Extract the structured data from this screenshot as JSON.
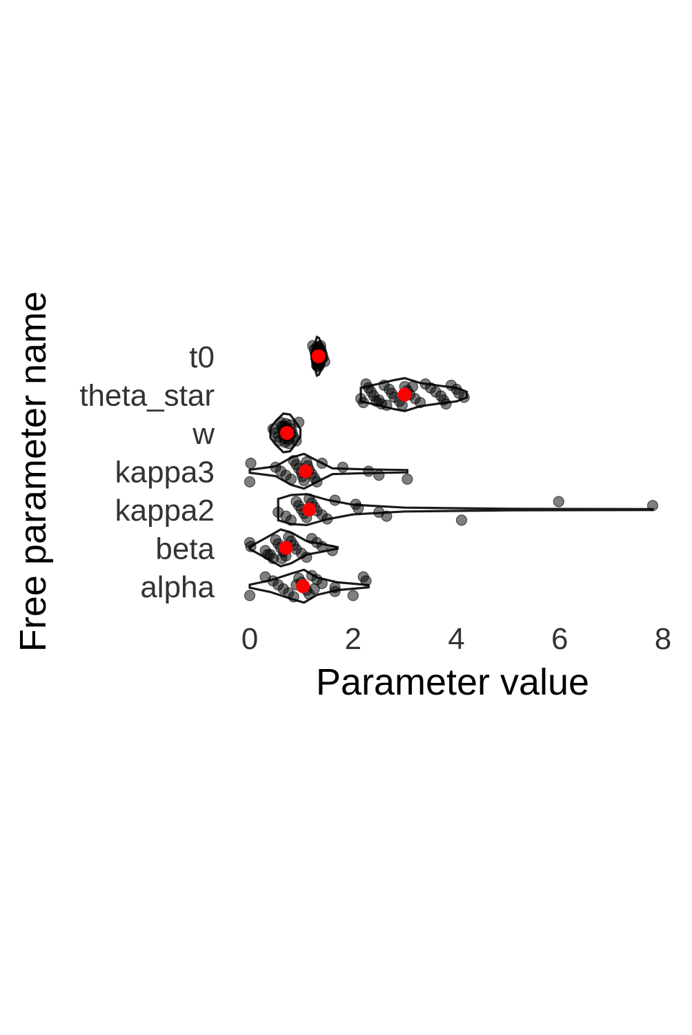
{
  "chart_data": {
    "type": "violin",
    "xlabel": "Parameter value",
    "ylabel": "Free parameter name",
    "xlim": [
      0,
      8
    ],
    "x_ticks": [
      0,
      2,
      4,
      6,
      8
    ],
    "grid": false,
    "orientation": "horizontal",
    "point_color": "#000000",
    "mean_color": "#ff0000",
    "categories": [
      "t0",
      "theta_star",
      "w",
      "kappa3",
      "kappa2",
      "beta",
      "alpha"
    ],
    "series": [
      {
        "category": "t0",
        "mean": 1.33,
        "points": [
          1.22,
          1.25,
          1.27,
          1.28,
          1.29,
          1.3,
          1.3,
          1.31,
          1.32,
          1.32,
          1.33,
          1.33,
          1.34,
          1.34,
          1.35,
          1.35,
          1.36,
          1.37,
          1.38,
          1.4,
          1.42,
          1.45,
          1.3,
          1.34,
          1.36
        ],
        "density": [
          [
            1.2,
            0.15
          ],
          [
            1.26,
            0.6
          ],
          [
            1.3,
            1.0
          ],
          [
            1.34,
            0.95
          ],
          [
            1.38,
            0.7
          ],
          [
            1.43,
            0.4
          ],
          [
            1.48,
            0.12
          ]
        ]
      },
      {
        "category": "theta_star",
        "mean": 3.0,
        "points": [
          2.15,
          2.2,
          2.25,
          2.3,
          2.35,
          2.4,
          2.5,
          2.55,
          2.6,
          2.7,
          2.75,
          2.8,
          2.9,
          2.95,
          3.0,
          3.05,
          3.1,
          3.2,
          3.3,
          3.4,
          3.5,
          3.6,
          3.7,
          3.75,
          3.8,
          3.9,
          4.0,
          4.05,
          4.15,
          2.45,
          2.65,
          3.15
        ],
        "density": [
          [
            2.15,
            0.35
          ],
          [
            2.4,
            0.5
          ],
          [
            2.8,
            0.75
          ],
          [
            3.0,
            0.85
          ],
          [
            3.3,
            0.6
          ],
          [
            3.7,
            0.45
          ],
          [
            4.0,
            0.35
          ],
          [
            4.2,
            0.15
          ]
        ]
      },
      {
        "category": "w",
        "mean": 0.72,
        "points": [
          0.45,
          0.5,
          0.55,
          0.58,
          0.6,
          0.62,
          0.64,
          0.65,
          0.67,
          0.68,
          0.7,
          0.71,
          0.72,
          0.73,
          0.75,
          0.76,
          0.78,
          0.8,
          0.82,
          0.85,
          0.9,
          0.95,
          0.66,
          0.74,
          0.79
        ],
        "density": [
          [
            0.4,
            0.25
          ],
          [
            0.5,
            0.6
          ],
          [
            0.65,
            1.0
          ],
          [
            0.78,
            0.95
          ],
          [
            0.88,
            0.6
          ],
          [
            0.98,
            0.2
          ]
        ]
      },
      {
        "category": "kappa3",
        "mean": 1.08,
        "points": [
          0.0,
          0.02,
          0.5,
          0.6,
          0.7,
          0.8,
          0.85,
          0.9,
          0.95,
          1.0,
          1.02,
          1.05,
          1.1,
          1.12,
          1.15,
          1.2,
          1.25,
          1.3,
          1.4,
          1.8,
          2.3,
          2.5,
          3.05
        ],
        "density": [
          [
            0.0,
            0.08
          ],
          [
            0.5,
            0.25
          ],
          [
            0.8,
            0.7
          ],
          [
            1.05,
            0.9
          ],
          [
            1.3,
            0.55
          ],
          [
            1.6,
            0.15
          ],
          [
            2.2,
            0.1
          ],
          [
            3.05,
            0.06
          ]
        ]
      },
      {
        "category": "kappa2",
        "mean": 1.15,
        "points": [
          0.55,
          0.7,
          0.8,
          0.9,
          0.95,
          1.0,
          1.05,
          1.1,
          1.15,
          1.2,
          1.25,
          1.3,
          1.4,
          1.5,
          1.65,
          2.05,
          2.1,
          2.5,
          2.65,
          4.1,
          5.98,
          7.8
        ],
        "density": [
          [
            0.55,
            0.55
          ],
          [
            0.8,
            0.75
          ],
          [
            1.1,
            0.8
          ],
          [
            1.5,
            0.5
          ],
          [
            2.0,
            0.25
          ],
          [
            3.0,
            0.1
          ],
          [
            5.0,
            0.04
          ],
          [
            7.8,
            0.02
          ]
        ]
      },
      {
        "category": "beta",
        "mean": 0.7,
        "points": [
          0.0,
          0.02,
          0.3,
          0.4,
          0.45,
          0.5,
          0.55,
          0.6,
          0.65,
          0.7,
          0.75,
          0.8,
          0.85,
          0.9,
          1.0,
          1.1,
          1.2,
          1.3,
          1.4,
          1.6,
          0.35,
          0.62
        ],
        "density": [
          [
            0.0,
            0.06
          ],
          [
            0.3,
            0.5
          ],
          [
            0.6,
            0.95
          ],
          [
            0.8,
            0.8
          ],
          [
            1.1,
            0.35
          ],
          [
            1.4,
            0.2
          ],
          [
            1.7,
            0.04
          ]
        ]
      },
      {
        "category": "alpha",
        "mean": 1.03,
        "points": [
          0.0,
          0.3,
          0.45,
          0.55,
          0.65,
          0.75,
          0.85,
          0.95,
          1.0,
          1.05,
          1.1,
          1.15,
          1.2,
          1.3,
          1.4,
          1.65,
          1.65,
          2.0,
          2.2,
          2.25,
          0.9,
          1.25
        ],
        "density": [
          [
            0.0,
            0.08
          ],
          [
            0.4,
            0.3
          ],
          [
            0.8,
            0.65
          ],
          [
            1.05,
            0.85
          ],
          [
            1.3,
            0.45
          ],
          [
            1.7,
            0.2
          ],
          [
            2.3,
            0.06
          ]
        ]
      }
    ]
  }
}
